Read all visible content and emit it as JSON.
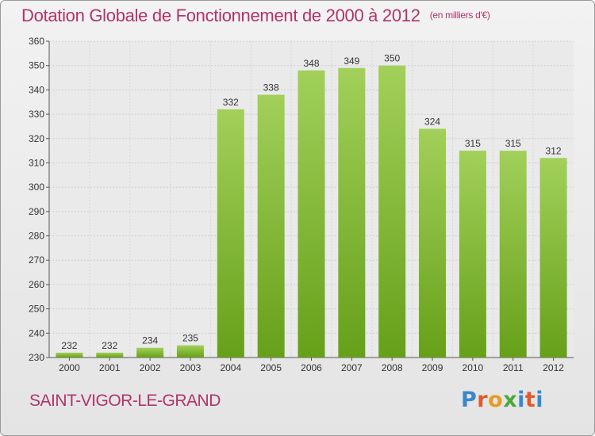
{
  "header": {
    "title": "Dotation Globale de Fonctionnement de 2000 à 2012",
    "unit": "(en milliers d'€)"
  },
  "footer": {
    "town": "SAINT-VIGOR-LE-GRAND",
    "logo": "Proxiti",
    "logo_colors": [
      "#3a88c9",
      "#e05a2b",
      "#e89a22",
      "#4aa83a",
      "#3a88c9",
      "#e05a2b",
      "#3a88c9"
    ]
  },
  "colors": {
    "title": "#b0346a",
    "bar_light": "#a2d05a",
    "bar_dark": "#66a019",
    "axis": "#555555"
  },
  "chart_data": {
    "type": "bar",
    "categories": [
      "2000",
      "2001",
      "2002",
      "2003",
      "2004",
      "2005",
      "2006",
      "2007",
      "2008",
      "2009",
      "2010",
      "2011",
      "2012"
    ],
    "values": [
      232,
      232,
      234,
      235,
      332,
      338,
      348,
      349,
      350,
      324,
      315,
      315,
      312
    ],
    "ylim": [
      230,
      360
    ],
    "yticks": [
      230,
      240,
      250,
      260,
      270,
      280,
      290,
      300,
      310,
      320,
      330,
      340,
      350,
      360
    ],
    "grid": true,
    "legend": "none"
  }
}
